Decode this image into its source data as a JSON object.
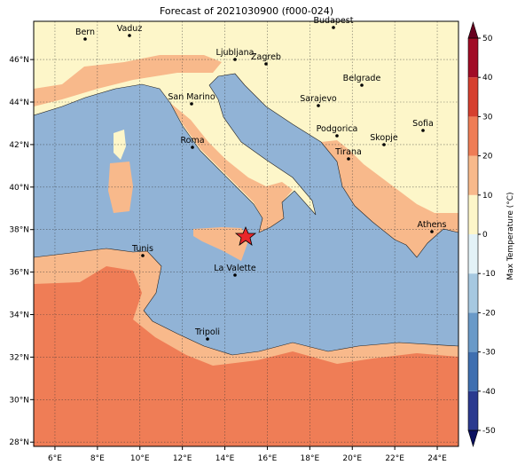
{
  "map": {
    "title": "Forecast of 2021030900 (f000-024)",
    "xlim": [
      5,
      25
    ],
    "ylim": [
      27.8,
      47.8
    ],
    "xticks": [
      {
        "value": 6,
        "label": "6°E"
      },
      {
        "value": 8,
        "label": "8°E"
      },
      {
        "value": 10,
        "label": "10°E"
      },
      {
        "value": 12,
        "label": "12°E"
      },
      {
        "value": 14,
        "label": "14°E"
      },
      {
        "value": 16,
        "label": "16°E"
      },
      {
        "value": 18,
        "label": "18°E"
      },
      {
        "value": 20,
        "label": "20°E"
      },
      {
        "value": 22,
        "label": "22°E"
      },
      {
        "value": 24,
        "label": "24°E"
      }
    ],
    "yticks": [
      {
        "value": 28,
        "label": "28°N"
      },
      {
        "value": 30,
        "label": "30°N"
      },
      {
        "value": 32,
        "label": "32°N"
      },
      {
        "value": 34,
        "label": "34°N"
      },
      {
        "value": 36,
        "label": "36°N"
      },
      {
        "value": 38,
        "label": "38°N"
      },
      {
        "value": 40,
        "label": "40°N"
      },
      {
        "value": 42,
        "label": "42°N"
      },
      {
        "value": 44,
        "label": "44°N"
      },
      {
        "value": 46,
        "label": "46°N"
      }
    ],
    "grid": true,
    "cities": [
      "Bern",
      "Vaduz",
      "Budapest",
      "Ljubljana",
      "Zagreb",
      "Belgrade",
      "San Marino",
      "Sarajevo",
      "Sofia",
      "Podgorica",
      "Skopje",
      "Roma",
      "Tirana",
      "Athens",
      "Tunis",
      "La Valette",
      "Tripoli"
    ],
    "colorbar": {
      "label": "Max Temperature (°C)",
      "ticks": [
        -50,
        -40,
        -30,
        -20,
        -10,
        0,
        10,
        20,
        30,
        40,
        50
      ],
      "colors": [
        "#2b3a8f",
        "#3f6fb0",
        "#6a9ac8",
        "#a6c8e0",
        "#e3f2f7",
        "#fdf6c9",
        "#f8b98b",
        "#ef7d56",
        "#d6402f",
        "#a10c26"
      ]
    }
  }
}
